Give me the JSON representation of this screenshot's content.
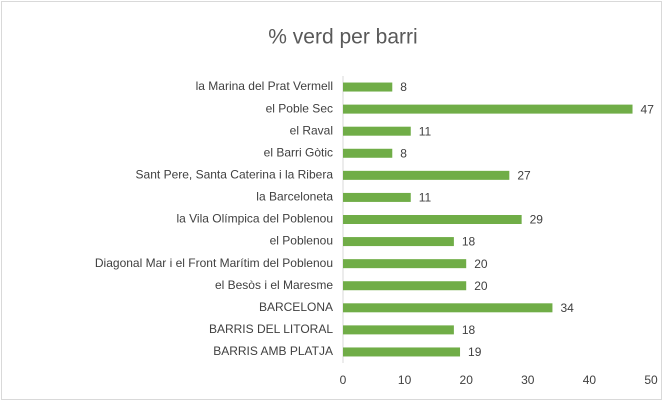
{
  "chart_data": {
    "type": "bar",
    "orientation": "horizontal",
    "title": "% verd per barri",
    "categories": [
      "la Marina del Prat Vermell",
      "el Poble Sec",
      "el Raval",
      "el Barri Gòtic",
      "Sant Pere, Santa Caterina i la Ribera",
      "la Barceloneta",
      "la Vila Olímpica del Poblenou",
      "el Poblenou",
      "Diagonal Mar i el Front Marítim del Poblenou",
      "el Besòs i el Maresme",
      "BARCELONA",
      "BARRIS DEL LITORAL",
      "BARRIS AMB PLATJA"
    ],
    "values": [
      8,
      47,
      11,
      8,
      27,
      11,
      29,
      18,
      20,
      20,
      34,
      18,
      19
    ],
    "color": "#70ad47",
    "xlim": [
      0,
      50
    ],
    "xticks": [
      0,
      10,
      20,
      30,
      40,
      50
    ],
    "grid": false
  }
}
